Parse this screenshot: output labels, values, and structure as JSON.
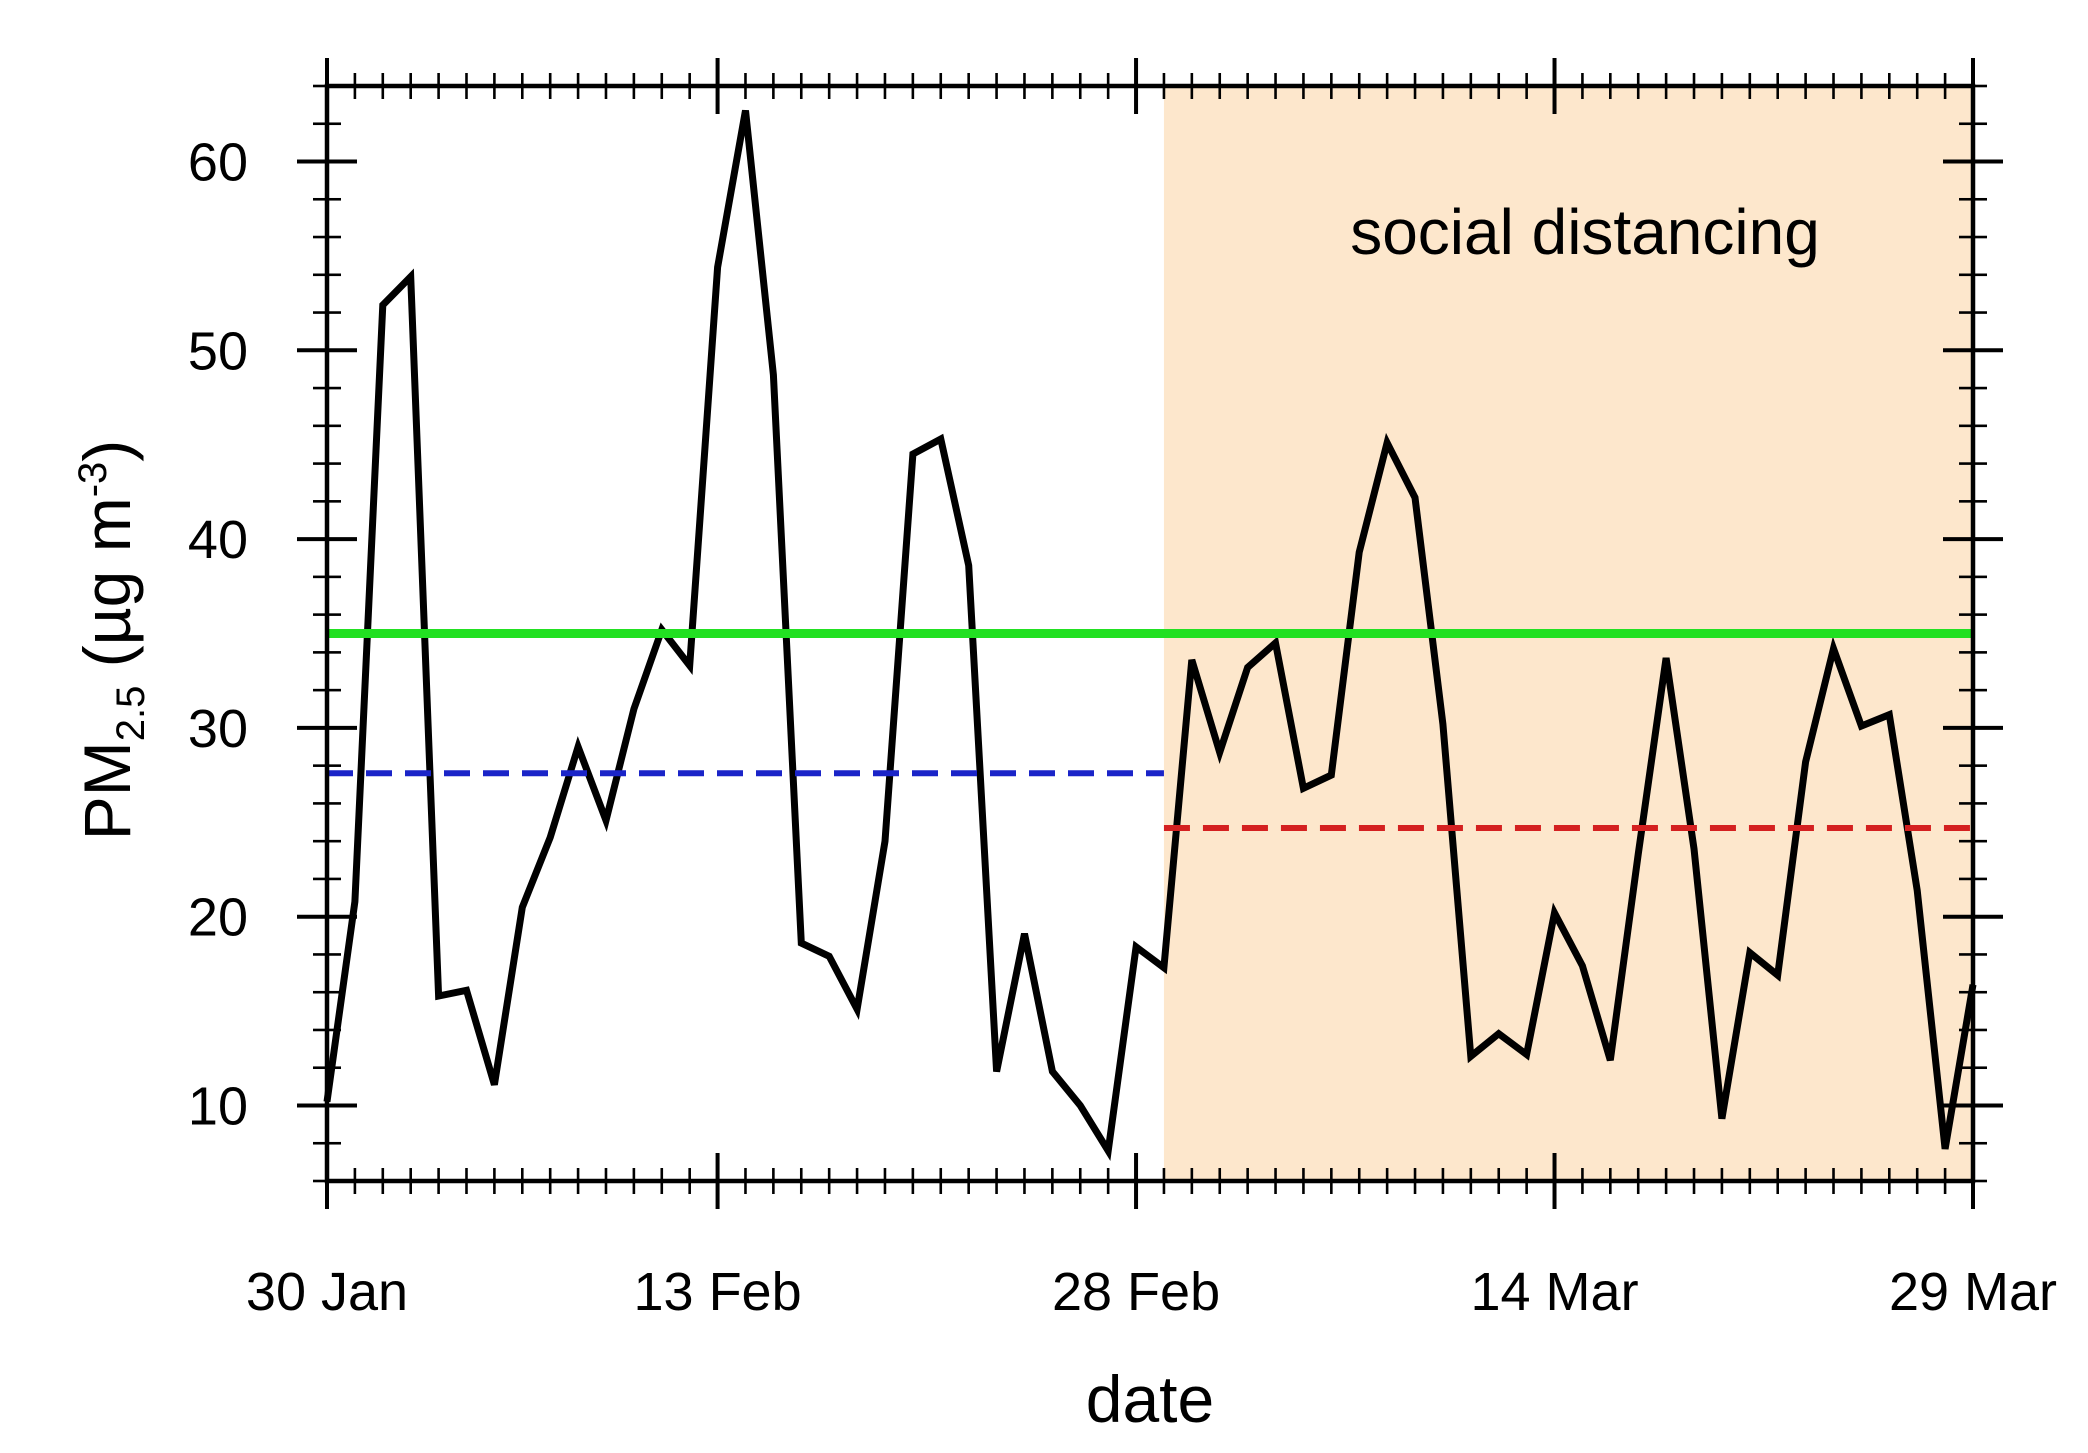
{
  "chart_data": {
    "type": "line",
    "xlabel": "date",
    "ylabel": {
      "main": "PM",
      "sub": "2.5",
      "unit_pre": " (µg m",
      "sup": "-3",
      "unit_post": ")"
    },
    "x_start": "30 Jan",
    "x_tick_labels": [
      "30 Jan",
      "13 Feb",
      "28 Feb",
      "14 Mar",
      "29 Mar"
    ],
    "x_tick_days": [
      0,
      14,
      29,
      44,
      59
    ],
    "xlim_days": [
      0,
      59
    ],
    "ylim": [
      6,
      64
    ],
    "y_ticks": [
      10,
      20,
      30,
      40,
      50,
      60
    ],
    "grid": false,
    "shaded_region": {
      "label": "social distancing",
      "start_day": 30,
      "end_day": 59,
      "color": "#fde7cc"
    },
    "series": [
      {
        "color": "#000000",
        "style": "solid",
        "values": [
          10.2,
          20.8,
          52.4,
          53.9,
          15.8,
          16.1,
          11.1,
          20.5,
          24.2,
          29.0,
          25.1,
          31.0,
          35.2,
          33.3,
          54.4,
          62.7,
          48.7,
          18.6,
          17.9,
          15.1,
          24.0,
          44.5,
          45.3,
          38.6,
          11.8,
          19.1,
          11.8,
          10.0,
          7.6,
          18.4,
          17.3,
          33.6,
          28.7,
          33.2,
          34.5,
          26.8,
          27.5,
          39.3,
          45.1,
          42.2,
          30.2,
          12.6,
          13.8,
          12.7,
          20.2,
          17.4,
          12.4,
          23.3,
          33.7,
          23.6,
          9.3,
          18.1,
          16.9,
          28.2,
          34.2,
          30.1,
          30.7,
          21.4,
          7.7,
          16.4
        ]
      },
      {
        "color": "#22e022",
        "style": "solid",
        "x_range": [
          0,
          59
        ],
        "value": 35.0
      },
      {
        "color": "#1a24c8",
        "style": "dashed",
        "x_range": [
          0,
          30
        ],
        "value": 27.6
      },
      {
        "color": "#d42020",
        "style": "dashed",
        "x_range": [
          30,
          59
        ],
        "value": 24.7
      }
    ]
  }
}
